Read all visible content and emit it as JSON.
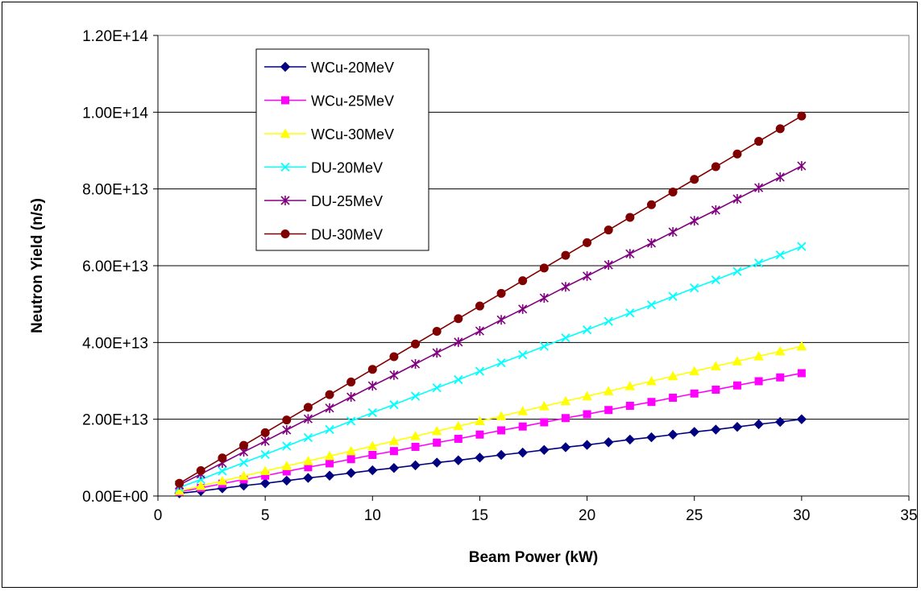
{
  "chart_data": {
    "type": "line",
    "title": "",
    "xlabel": "Beam Power (kW)",
    "ylabel": "Neutron Yield (n/s)",
    "xlim": [
      0,
      35
    ],
    "ylim": [
      0,
      120000000000000.0
    ],
    "xticks": [
      0,
      5,
      10,
      15,
      20,
      25,
      30,
      35
    ],
    "xtick_labels": [
      "0",
      "5",
      "10",
      "15",
      "20",
      "25",
      "30",
      "35"
    ],
    "yticks": [
      0,
      20000000000000.0,
      40000000000000.0,
      60000000000000.0,
      80000000000000.0,
      100000000000000.0,
      120000000000000.0
    ],
    "ytick_labels": [
      "0.00E+00",
      "2.00E+13",
      "4.00E+13",
      "6.00E+13",
      "8.00E+13",
      "1.00E+14",
      "1.20E+14"
    ],
    "grid": "horizontal",
    "legend_position": "top-left",
    "x": [
      1,
      2,
      3,
      4,
      5,
      6,
      7,
      8,
      9,
      10,
      11,
      12,
      13,
      14,
      15,
      16,
      17,
      18,
      19,
      20,
      21,
      22,
      23,
      24,
      25,
      26,
      27,
      28,
      29,
      30
    ],
    "series": [
      {
        "name": "WCu-20MeV",
        "color": "#000080",
        "marker": "diamond",
        "values": [
          700000000000.0,
          1300000000000.0,
          2000000000000.0,
          2700000000000.0,
          3300000000000.0,
          4000000000000.0,
          4700000000000.0,
          5300000000000.0,
          6000000000000.0,
          6700000000000.0,
          7300000000000.0,
          8000000000000.0,
          8700000000000.0,
          9300000000000.0,
          10000000000000.0,
          10700000000000.0,
          11300000000000.0,
          12000000000000.0,
          12700000000000.0,
          13300000000000.0,
          14000000000000.0,
          14700000000000.0,
          15300000000000.0,
          16000000000000.0,
          16700000000000.0,
          17300000000000.0,
          18000000000000.0,
          18700000000000.0,
          19300000000000.0,
          20000000000000.0
        ]
      },
      {
        "name": "WCu-25MeV",
        "color": "#ff00ff",
        "marker": "square",
        "values": [
          1100000000000.0,
          2100000000000.0,
          3200000000000.0,
          4300000000000.0,
          5300000000000.0,
          6400000000000.0,
          7500000000000.0,
          8500000000000.0,
          9600000000000.0,
          10700000000000.0,
          11700000000000.0,
          12800000000000.0,
          13900000000000.0,
          14900000000000.0,
          16000000000000.0,
          17100000000000.0,
          18100000000000.0,
          19200000000000.0,
          20300000000000.0,
          21300000000000.0,
          22400000000000.0,
          23500000000000.0,
          24500000000000.0,
          25600000000000.0,
          26700000000000.0,
          27700000000000.0,
          28800000000000.0,
          29900000000000.0,
          30900000000000.0,
          32000000000000.0
        ]
      },
      {
        "name": "WCu-30MeV",
        "color": "#ffff00",
        "marker": "triangle",
        "values": [
          1300000000000.0,
          2600000000000.0,
          3900000000000.0,
          5200000000000.0,
          6500000000000.0,
          7800000000000.0,
          9100000000000.0,
          10400000000000.0,
          11700000000000.0,
          13000000000000.0,
          14300000000000.0,
          15600000000000.0,
          16900000000000.0,
          18200000000000.0,
          19500000000000.0,
          20800000000000.0,
          22100000000000.0,
          23400000000000.0,
          24700000000000.0,
          26000000000000.0,
          27300000000000.0,
          28600000000000.0,
          29900000000000.0,
          31200000000000.0,
          32500000000000.0,
          33800000000000.0,
          35100000000000.0,
          36400000000000.0,
          37700000000000.0,
          39000000000000.0
        ]
      },
      {
        "name": "DU-20MeV",
        "color": "#00ffff",
        "marker": "x",
        "values": [
          2200000000000.0,
          4300000000000.0,
          6500000000000.0,
          8700000000000.0,
          10800000000000.0,
          13000000000000.0,
          15200000000000.0,
          17300000000000.0,
          19500000000000.0,
          21700000000000.0,
          23800000000000.0,
          26000000000000.0,
          28200000000000.0,
          30300000000000.0,
          32500000000000.0,
          34700000000000.0,
          36800000000000.0,
          39000000000000.0,
          41200000000000.0,
          43300000000000.0,
          45500000000000.0,
          47700000000000.0,
          49800000000000.0,
          52000000000000.0,
          54200000000000.0,
          56300000000000.0,
          58500000000000.0,
          60700000000000.0,
          62800000000000.0,
          65000000000000.0
        ]
      },
      {
        "name": "DU-25MeV",
        "color": "#800080",
        "marker": "star",
        "values": [
          2900000000000.0,
          5700000000000.0,
          8600000000000.0,
          11500000000000.0,
          14300000000000.0,
          17200000000000.0,
          20100000000000.0,
          22900000000000.0,
          25800000000000.0,
          28700000000000.0,
          31500000000000.0,
          34400000000000.0,
          37300000000000.0,
          40100000000000.0,
          43000000000000.0,
          45900000000000.0,
          48700000000000.0,
          51600000000000.0,
          54500000000000.0,
          57300000000000.0,
          60200000000000.0,
          63100000000000.0,
          65900000000000.0,
          68800000000000.0,
          71700000000000.0,
          74500000000000.0,
          77400000000000.0,
          80300000000000.0,
          83100000000000.0,
          86000000000000.0
        ]
      },
      {
        "name": "DU-30MeV",
        "color": "#800000",
        "marker": "circle",
        "values": [
          3300000000000.0,
          6600000000000.0,
          9900000000000.0,
          13200000000000.0,
          16500000000000.0,
          19800000000000.0,
          23100000000000.0,
          26400000000000.0,
          29700000000000.0,
          33000000000000.0,
          36300000000000.0,
          39600000000000.0,
          42900000000000.0,
          46200000000000.0,
          49500000000000.0,
          52800000000000.0,
          56100000000000.0,
          59400000000000.0,
          62700000000000.0,
          66000000000000.0,
          69300000000000.0,
          72600000000000.0,
          75900000000000.0,
          79200000000000.0,
          82500000000000.0,
          85800000000000.0,
          89100000000000.0,
          92400000000000.0,
          95700000000000.0,
          99000000000000.0
        ]
      }
    ]
  }
}
